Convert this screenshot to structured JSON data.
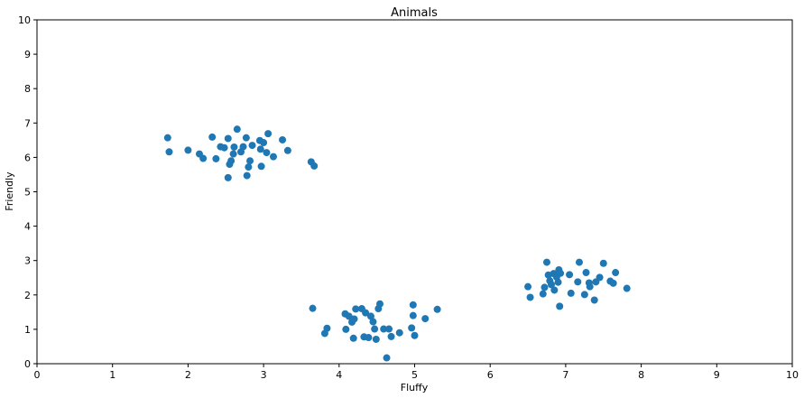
{
  "chart_data": {
    "type": "scatter",
    "title": "Animals",
    "xlabel": "Fluffy",
    "ylabel": "Friendly",
    "xlim": [
      0,
      10
    ],
    "ylim": [
      0,
      10
    ],
    "xticks": [
      0,
      1,
      2,
      3,
      4,
      5,
      6,
      7,
      8,
      9,
      10
    ],
    "yticks": [
      0,
      1,
      2,
      3,
      4,
      5,
      6,
      7,
      8,
      9,
      10
    ],
    "grid": false,
    "marker_color": "#1f77b4",
    "points": [
      [
        1.73,
        6.57
      ],
      [
        1.75,
        6.16
      ],
      [
        2.0,
        6.21
      ],
      [
        2.15,
        6.1
      ],
      [
        2.2,
        5.97
      ],
      [
        2.32,
        6.59
      ],
      [
        2.37,
        5.96
      ],
      [
        2.43,
        6.31
      ],
      [
        2.48,
        6.28
      ],
      [
        2.53,
        6.55
      ],
      [
        2.55,
        5.8
      ],
      [
        2.57,
        5.9
      ],
      [
        2.6,
        6.1
      ],
      [
        2.61,
        6.3
      ],
      [
        2.65,
        6.82
      ],
      [
        2.7,
        6.16
      ],
      [
        2.73,
        6.31
      ],
      [
        2.77,
        6.57
      ],
      [
        2.78,
        5.47
      ],
      [
        2.8,
        5.72
      ],
      [
        2.82,
        5.9
      ],
      [
        2.85,
        6.35
      ],
      [
        2.95,
        6.49
      ],
      [
        2.96,
        6.24
      ],
      [
        2.97,
        5.74
      ],
      [
        3.0,
        6.43
      ],
      [
        3.04,
        6.14
      ],
      [
        3.06,
        6.69
      ],
      [
        3.13,
        6.02
      ],
      [
        3.25,
        6.51
      ],
      [
        3.32,
        6.2
      ],
      [
        2.53,
        5.41
      ],
      [
        3.63,
        5.87
      ],
      [
        3.67,
        5.75
      ],
      [
        3.65,
        1.61
      ],
      [
        3.81,
        0.88
      ],
      [
        3.84,
        1.03
      ],
      [
        4.08,
        1.45
      ],
      [
        4.09,
        1.0
      ],
      [
        4.13,
        1.38
      ],
      [
        4.17,
        1.21
      ],
      [
        4.19,
        0.74
      ],
      [
        4.2,
        1.3
      ],
      [
        4.22,
        1.59
      ],
      [
        4.3,
        1.6
      ],
      [
        4.33,
        0.78
      ],
      [
        4.35,
        1.48
      ],
      [
        4.39,
        0.76
      ],
      [
        4.42,
        1.38
      ],
      [
        4.45,
        1.22
      ],
      [
        4.47,
        1.01
      ],
      [
        4.49,
        0.71
      ],
      [
        4.52,
        1.6
      ],
      [
        4.54,
        1.74
      ],
      [
        4.59,
        1.01
      ],
      [
        4.63,
        0.17
      ],
      [
        4.66,
        1.01
      ],
      [
        4.69,
        0.79
      ],
      [
        4.8,
        0.9
      ],
      [
        4.96,
        1.04
      ],
      [
        4.98,
        1.4
      ],
      [
        4.98,
        1.71
      ],
      [
        5.0,
        0.82
      ],
      [
        5.14,
        1.31
      ],
      [
        5.3,
        1.58
      ],
      [
        6.5,
        2.24
      ],
      [
        6.53,
        1.93
      ],
      [
        6.7,
        2.03
      ],
      [
        6.72,
        2.22
      ],
      [
        6.75,
        2.95
      ],
      [
        6.77,
        2.58
      ],
      [
        6.79,
        2.41
      ],
      [
        6.81,
        2.3
      ],
      [
        6.84,
        2.62
      ],
      [
        6.85,
        2.14
      ],
      [
        6.88,
        2.52
      ],
      [
        6.9,
        2.37
      ],
      [
        6.91,
        2.73
      ],
      [
        6.92,
        1.67
      ],
      [
        6.93,
        2.63
      ],
      [
        7.05,
        2.59
      ],
      [
        7.07,
        2.05
      ],
      [
        7.16,
        2.38
      ],
      [
        7.18,
        2.95
      ],
      [
        7.25,
        2.01
      ],
      [
        7.27,
        2.65
      ],
      [
        7.31,
        2.35
      ],
      [
        7.32,
        2.24
      ],
      [
        7.38,
        1.85
      ],
      [
        7.4,
        2.38
      ],
      [
        7.45,
        2.51
      ],
      [
        7.5,
        2.92
      ],
      [
        7.59,
        2.4
      ],
      [
        7.63,
        2.34
      ],
      [
        7.66,
        2.65
      ],
      [
        7.81,
        2.19
      ]
    ]
  }
}
